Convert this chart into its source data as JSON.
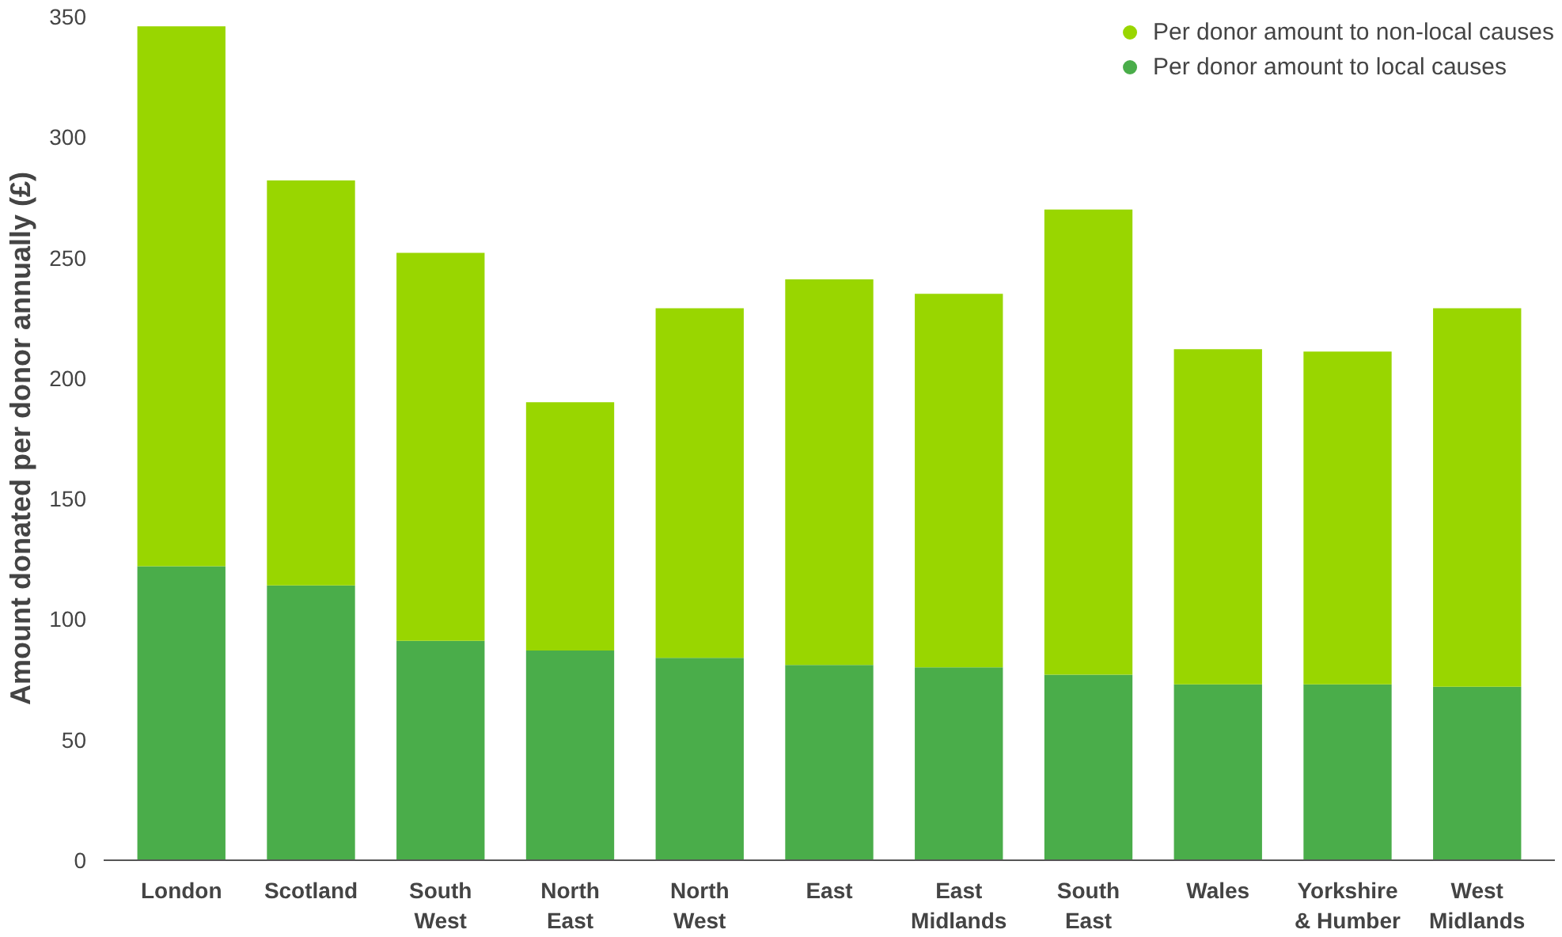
{
  "chart_data": {
    "type": "bar",
    "stacked": true,
    "ylabel": "Amount donated per donor annually (£)",
    "categories": [
      "London",
      "Scotland",
      "South West",
      "North East",
      "North West",
      "East",
      "East Midlands",
      "South East",
      "Wales",
      "Yorkshire & Humber",
      "West Midlands"
    ],
    "series": [
      {
        "name": "Per donor amount to local causes",
        "color": "#4aad4a",
        "values": [
          122,
          114,
          91,
          87,
          84,
          81,
          80,
          77,
          73,
          73,
          72
        ]
      },
      {
        "name": "Per donor amount to non-local causes",
        "color": "#99d600",
        "values": [
          224,
          168,
          161,
          103,
          145,
          160,
          155,
          193,
          139,
          138,
          157
        ]
      }
    ],
    "ylim": [
      0,
      350
    ],
    "yticks": [
      0,
      50,
      100,
      150,
      200,
      250,
      300,
      350
    ],
    "grid": false,
    "legend": "top right",
    "marker": "circle"
  }
}
